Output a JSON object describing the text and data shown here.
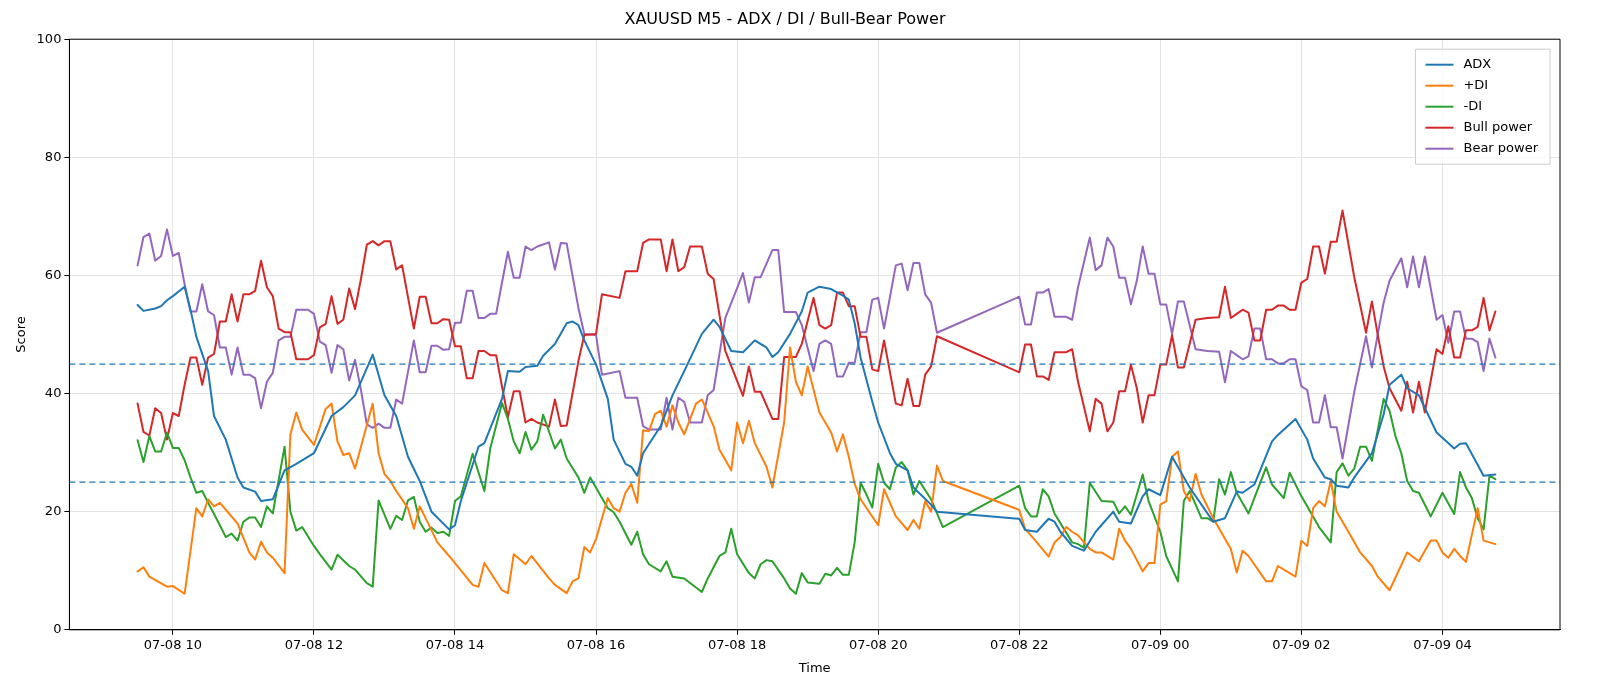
{
  "chart_data": {
    "type": "line",
    "title": "XAUUSD M5 - ADX / DI / Bull-Bear Power",
    "xlabel": "Time",
    "ylabel": "Score",
    "xlim": [
      "--07-08T08:32",
      "--07-09T05:40"
    ],
    "xticks": [
      {
        "value": "--07-08T10:00",
        "label": "07-08 10"
      },
      {
        "value": "--07-08T12:00",
        "label": "07-08 12"
      },
      {
        "value": "--07-08T14:00",
        "label": "07-08 14"
      },
      {
        "value": "--07-08T16:00",
        "label": "07-08 16"
      },
      {
        "value": "--07-08T18:00",
        "label": "07-08 18"
      },
      {
        "value": "--07-08T20:00",
        "label": "07-08 20"
      },
      {
        "value": "--07-08T22:00",
        "label": "07-08 22"
      },
      {
        "value": "--07-09T00:00",
        "label": "07-09 00"
      },
      {
        "value": "--07-09T02:00",
        "label": "07-09 02"
      },
      {
        "value": "--07-09T04:00",
        "label": "07-09 04"
      }
    ],
    "ylim": [
      0,
      100
    ],
    "yticks": [
      0,
      20,
      40,
      60,
      80,
      100
    ],
    "grid": true,
    "legend": "top right",
    "x": [
      "--07-08T09:30",
      "--07-08T09:35",
      "--07-08T09:40",
      "--07-08T09:45",
      "--07-08T09:50",
      "--07-08T09:55",
      "--07-08T10:00",
      "--07-08T10:05",
      "--07-08T10:10",
      "--07-08T10:15",
      "--07-08T10:20",
      "--07-08T10:25",
      "--07-08T10:30",
      "--07-08T10:35",
      "--07-08T10:40",
      "--07-08T10:45",
      "--07-08T10:50",
      "--07-08T10:55",
      "--07-08T11:00",
      "--07-08T11:05",
      "--07-08T11:10",
      "--07-08T11:15",
      "--07-08T11:20",
      "--07-08T11:25",
      "--07-08T11:30",
      "--07-08T11:35",
      "--07-08T11:40",
      "--07-08T11:45",
      "--07-08T11:55",
      "--07-08T12:00",
      "--07-08T12:05",
      "--07-08T12:10",
      "--07-08T12:15",
      "--07-08T12:20",
      "--07-08T12:25",
      "--07-08T12:30",
      "--07-08T12:35",
      "--07-08T12:40",
      "--07-08T12:45",
      "--07-08T12:50",
      "--07-08T12:55",
      "--07-08T13:00",
      "--07-08T13:05",
      "--07-08T13:10",
      "--07-08T13:15",
      "--07-08T13:25",
      "--07-08T13:30",
      "--07-08T13:35",
      "--07-08T13:40",
      "--07-08T13:45",
      "--07-08T13:50",
      "--07-08T13:55",
      "--07-08T14:00",
      "--07-08T14:05",
      "--07-08T14:10",
      "--07-08T14:15",
      "--07-08T14:20",
      "--07-08T14:25",
      "--07-08T14:30",
      "--07-08T14:35",
      "--07-08T14:40",
      "--07-08T14:45",
      "--07-08T14:50",
      "--07-08T14:55",
      "--07-08T15:00",
      "--07-08T15:05",
      "--07-08T15:10",
      "--07-08T15:20",
      "--07-08T15:25",
      "--07-08T15:30",
      "--07-08T15:35",
      "--07-08T15:45",
      "--07-08T15:50",
      "--07-08T16:00",
      "--07-08T16:05",
      "--07-08T16:20",
      "--07-08T16:25",
      "--07-08T16:35",
      "--07-08T16:40",
      "--07-08T16:45",
      "--07-08T16:55",
      "--07-08T17:00",
      "--07-08T17:05",
      "--07-08T17:10",
      "--07-08T17:15",
      "--07-08T17:20",
      "--07-08T17:30",
      "--07-08T17:35",
      "--07-08T17:40",
      "--07-08T17:50",
      "--07-08T18:05",
      "--07-08T18:10",
      "--07-08T18:15",
      "--07-08T18:20",
      "--07-08T18:30",
      "--07-08T18:35",
      "--07-08T18:40",
      "--07-08T18:50",
      "--07-08T18:55",
      "--07-08T19:05",
      "--07-08T19:10",
      "--07-08T19:15",
      "--07-08T19:20",
      "--07-08T19:25",
      "--07-08T19:30",
      "--07-08T19:35",
      "--07-08T19:40",
      "--07-08T19:45",
      "--07-08T19:50",
      "--07-08T19:55",
      "--07-08T20:00",
      "--07-08T20:05",
      "--07-08T20:15",
      "--07-08T20:20",
      "--07-08T20:25",
      "--07-08T20:30",
      "--07-08T20:35",
      "--07-08T20:40",
      "--07-08T20:45",
      "--07-08T20:50",
      "--07-08T22:00",
      "--07-08T22:05",
      "--07-08T22:10",
      "--07-08T22:15",
      "--07-08T22:20",
      "--07-08T22:25",
      "--07-08T22:30",
      "--07-08T22:40",
      "--07-08T22:45",
      "--07-08T22:50",
      "--07-08T23:00",
      "--07-08T23:05",
      "--07-08T23:10",
      "--07-08T23:15",
      "--07-08T23:20",
      "--07-08T23:25",
      "--07-08T23:30",
      "--07-08T23:35",
      "--07-08T23:40",
      "--07-08T23:45",
      "--07-08T23:50",
      "--07-08T23:55",
      "--07-09T00:00",
      "--07-09T00:05",
      "--07-09T00:10",
      "--07-09T00:15",
      "--07-09T00:20",
      "--07-09T00:30",
      "--07-09T00:40",
      "--07-09T00:50",
      "--07-09T00:55",
      "--07-09T01:00",
      "--07-09T01:05",
      "--07-09T01:10",
      "--07-09T01:15",
      "--07-09T01:20",
      "--07-09T01:25",
      "--07-09T01:30",
      "--07-09T01:35",
      "--07-09T01:40",
      "--07-09T01:45",
      "--07-09T01:50",
      "--07-09T01:55",
      "--07-09T02:00",
      "--07-09T02:05",
      "--07-09T02:10",
      "--07-09T02:15",
      "--07-09T02:20",
      "--07-09T02:25",
      "--07-09T02:30",
      "--07-09T02:35",
      "--07-09T02:45",
      "--07-09T02:55",
      "--07-09T03:00",
      "--07-09T03:05",
      "--07-09T03:10",
      "--07-09T03:15",
      "--07-09T03:25",
      "--07-09T03:30",
      "--07-09T03:35",
      "--07-09T03:40",
      "--07-09T03:45",
      "--07-09T03:55",
      "--07-09T04:00",
      "--07-09T04:05",
      "--07-09T04:10",
      "--07-09T04:15",
      "--07-09T04:20",
      "--07-09T04:25",
      "--07-09T04:30",
      "--07-09T04:35",
      "--07-09T04:40",
      "--07-09T04:45"
    ],
    "series": [
      {
        "name": "ADX",
        "color": "#1f77b4",
        "x": [
          "--07-08T09:30",
          "--07-08T09:35",
          "--07-08T09:45",
          "--07-08T09:50",
          "--07-08T09:55",
          "--07-08T10:00",
          "--07-08T10:10",
          "--07-08T10:15",
          "--07-08T10:20",
          "--07-08T10:30",
          "--07-08T10:35",
          "--07-08T10:45",
          "--07-08T10:55",
          "--07-08T11:00",
          "--07-08T11:10",
          "--07-08T11:15",
          "--07-08T11:25",
          "--07-08T11:35",
          "--07-08T11:45",
          "--07-08T12:00",
          "--07-08T12:15",
          "--07-08T12:25",
          "--07-08T12:35",
          "--07-08T12:50",
          "--07-08T13:00",
          "--07-08T13:10",
          "--07-08T13:20",
          "--07-08T13:30",
          "--07-08T13:40",
          "--07-08T13:55",
          "--07-08T14:00",
          "--07-08T14:05",
          "--07-08T14:20",
          "--07-08T14:25",
          "--07-08T14:40",
          "--07-08T14:45",
          "--07-08T14:55",
          "--07-08T15:00",
          "--07-08T15:10",
          "--07-08T15:15",
          "--07-08T15:25",
          "--07-08T15:35",
          "--07-08T15:40",
          "--07-08T15:45",
          "--07-08T15:50",
          "--07-08T16:00",
          "--07-08T16:10",
          "--07-08T16:15",
          "--07-08T16:25",
          "--07-08T16:30",
          "--07-08T16:35",
          "--07-08T16:40",
          "--07-08T16:55",
          "--07-08T17:05",
          "--07-08T17:15",
          "--07-08T17:30",
          "--07-08T17:40",
          "--07-08T17:45",
          "--07-08T17:55",
          "--07-08T18:05",
          "--07-08T18:15",
          "--07-08T18:25",
          "--07-08T18:30",
          "--07-08T18:35",
          "--07-08T18:45",
          "--07-08T18:55",
          "--07-08T19:00",
          "--07-08T19:10",
          "--07-08T19:20",
          "--07-08T19:30",
          "--07-08T19:35",
          "--07-08T19:40",
          "--07-08T19:45",
          "--07-08T19:55",
          "--07-08T20:00",
          "--07-08T20:10",
          "--07-08T20:15",
          "--07-08T20:25",
          "--07-08T20:30",
          "--07-08T20:45",
          "--07-08T20:50",
          "--07-08T22:00",
          "--07-08T22:05",
          "--07-08T22:15",
          "--07-08T22:25",
          "--07-08T22:30",
          "--07-08T22:35",
          "--07-08T22:45",
          "--07-08T22:55",
          "--07-08T23:05",
          "--07-08T23:20",
          "--07-08T23:25",
          "--07-08T23:35",
          "--07-08T23:45",
          "--07-08T23:50",
          "--07-09T00:00",
          "--07-09T00:10",
          "--07-09T00:25",
          "--07-09T00:35",
          "--07-09T00:45",
          "--07-09T00:55",
          "--07-09T01:05",
          "--07-09T01:10",
          "--07-09T01:20",
          "--07-09T01:35",
          "--07-09T01:40",
          "--07-09T01:55",
          "--07-09T02:05",
          "--07-09T02:10",
          "--07-09T02:20",
          "--07-09T02:25",
          "--07-09T02:30",
          "--07-09T02:40",
          "--07-09T02:45",
          "--07-09T03:00",
          "--07-09T03:10",
          "--07-09T03:15",
          "--07-09T03:25",
          "--07-09T03:30",
          "--07-09T03:40",
          "--07-09T03:55",
          "--07-09T04:00",
          "--07-09T04:10",
          "--07-09T04:15",
          "--07-09T04:20",
          "--07-09T04:35",
          "--07-09T04:45"
        ],
        "values": [
          55,
          54,
          54.4,
          54.8,
          55.8,
          56.5,
          58.1,
          54.2,
          49.6,
          43.8,
          36.2,
          32.2,
          25.8,
          24.1,
          23.4,
          21.8,
          22.1,
          27.0,
          28.1,
          29.9,
          36.2,
          37.7,
          39.7,
          46.6,
          39.7,
          36.2,
          29.3,
          25.2,
          20.0,
          17.0,
          17.7,
          21.8,
          31.0,
          31.6,
          39.1,
          43.8,
          43.7,
          44.5,
          44.7,
          46.4,
          48.4,
          51.9,
          52.2,
          51.6,
          49.0,
          44.9,
          39.1,
          32.2,
          28.1,
          27.6,
          26.1,
          29.9,
          34.5,
          39.7,
          43.8,
          50.1,
          52.5,
          51.3,
          47.2,
          47.0,
          49.0,
          47.8,
          46.2,
          47.0,
          50.1,
          53.9,
          57.1,
          58.1,
          57.7,
          56.6,
          55.9,
          51.9,
          46.1,
          38.6,
          35.1,
          29.9,
          28.1,
          27.0,
          24.1,
          21.2,
          20.0,
          18.8,
          16.9,
          16.6,
          18.8,
          18.3,
          16.6,
          14.2,
          13.4,
          16.6,
          20.0,
          18.3,
          18.0,
          22.6,
          23.8,
          22.8,
          29.3,
          24.1,
          21.2,
          18.3,
          18.9,
          23.4,
          23.2,
          24.6,
          31.9,
          33.0,
          35.7,
          32.2,
          29.0,
          25.8,
          25.5,
          24.4,
          24.1,
          25.8,
          29.9,
          36.5,
          41.5,
          43.2,
          40.9,
          39.7,
          33.4,
          32.5,
          30.7,
          31.5,
          31.6,
          26.1,
          26.3
        ]
      },
      {
        "name": "+DI",
        "color": "#ff7f0e",
        "x": [
          "--07-08T09:30",
          "--07-08T09:35",
          "--07-08T09:40",
          "--07-08T09:55",
          "--07-08T10:00",
          "--07-08T10:10",
          "--07-08T10:20",
          "--07-08T10:25",
          "--07-08T10:30",
          "--07-08T10:35",
          "--07-08T10:40",
          "--07-08T10:55",
          "--07-08T11:05",
          "--07-08T11:10",
          "--07-08T11:15",
          "--07-08T11:20",
          "--07-08T11:25",
          "--07-08T11:35",
          "--07-08T11:40",
          "--07-08T11:45",
          "--07-08T11:50",
          "--07-08T12:00",
          "--07-08T12:10",
          "--07-08T12:15",
          "--07-08T12:20",
          "--07-08T12:25",
          "--07-08T12:30",
          "--07-08T12:35",
          "--07-08T12:50",
          "--07-08T12:55",
          "--07-08T13:00",
          "--07-08T13:05",
          "--07-08T13:10",
          "--07-08T13:20",
          "--07-08T13:25",
          "--07-08T13:30",
          "--07-08T13:35",
          "--07-08T13:45",
          "--07-08T13:55",
          "--07-08T14:15",
          "--07-08T14:20",
          "--07-08T14:25",
          "--07-08T14:40",
          "--07-08T14:45",
          "--07-08T14:50",
          "--07-08T15:00",
          "--07-08T15:05",
          "--07-08T15:20",
          "--07-08T15:25",
          "--07-08T15:35",
          "--07-08T15:40",
          "--07-08T15:45",
          "--07-08T15:50",
          "--07-08T15:55",
          "--07-08T16:00",
          "--07-08T16:10",
          "--07-08T16:15",
          "--07-08T16:20",
          "--07-08T16:25",
          "--07-08T16:30",
          "--07-08T16:35",
          "--07-08T16:40",
          "--07-08T16:45",
          "--07-08T16:50",
          "--07-08T16:55",
          "--07-08T17:00",
          "--07-08T17:05",
          "--07-08T17:10",
          "--07-08T17:15",
          "--07-08T17:25",
          "--07-08T17:30",
          "--07-08T17:40",
          "--07-08T17:45",
          "--07-08T17:55",
          "--07-08T18:00",
          "--07-08T18:05",
          "--07-08T18:10",
          "--07-08T18:15",
          "--07-08T18:25",
          "--07-08T18:30",
          "--07-08T18:40",
          "--07-08T18:45",
          "--07-08T18:50",
          "--07-08T18:55",
          "--07-08T19:00",
          "--07-08T19:10",
          "--07-08T19:20",
          "--07-08T19:25",
          "--07-08T19:30",
          "--07-08T19:35",
          "--07-08T19:40",
          "--07-08T19:45",
          "--07-08T20:00",
          "--07-08T20:05",
          "--07-08T20:15",
          "--07-08T20:25",
          "--07-08T20:30",
          "--07-08T20:35",
          "--07-08T20:40",
          "--07-08T20:45",
          "--07-08T20:50",
          "--07-08T20:55",
          "--07-08T22:00",
          "--07-08T22:05",
          "--07-08T22:15",
          "--07-08T22:25",
          "--07-08T22:30",
          "--07-08T22:35",
          "--07-08T22:40",
          "--07-08T22:45",
          "--07-08T22:50",
          "--07-08T23:00",
          "--07-08T23:05",
          "--07-08T23:10",
          "--07-08T23:20",
          "--07-08T23:25",
          "--07-08T23:30",
          "--07-08T23:35",
          "--07-08T23:45",
          "--07-08T23:50",
          "--07-08T23:55",
          "--07-09T00:00",
          "--07-09T00:05",
          "--07-09T00:10",
          "--07-09T00:15",
          "--07-09T00:20",
          "--07-09T00:25",
          "--07-09T00:30",
          "--07-09T00:35",
          "--07-09T00:45",
          "--07-09T00:55",
          "--07-09T01:00",
          "--07-09T01:05",
          "--07-09T01:10",
          "--07-09T01:15",
          "--07-09T01:30",
          "--07-09T01:35",
          "--07-09T01:40",
          "--07-09T01:55",
          "--07-09T02:00",
          "--07-09T02:05",
          "--07-09T02:10",
          "--07-09T02:15",
          "--07-09T02:20",
          "--07-09T02:25",
          "--07-09T02:30",
          "--07-09T02:40",
          "--07-09T02:50",
          "--07-09T03:00",
          "--07-09T03:05",
          "--07-09T03:15",
          "--07-09T03:30",
          "--07-09T03:40",
          "--07-09T03:50",
          "--07-09T03:55",
          "--07-09T04:00",
          "--07-09T04:05",
          "--07-09T04:10",
          "--07-09T04:15",
          "--07-09T04:20",
          "--07-09T04:30",
          "--07-09T04:35",
          "--07-09T04:45"
        ],
        "values": [
          9.9,
          10.6,
          9.0,
          7.3,
          7.4,
          6.1,
          20.6,
          19.2,
          22.1,
          20.9,
          21.5,
          18.0,
          13.1,
          11.9,
          14.9,
          13.1,
          12.2,
          9.6,
          33.1,
          36.8,
          33.9,
          31.3,
          37.4,
          38.3,
          31.9,
          29.6,
          29.9,
          27.3,
          38.3,
          29.9,
          26.4,
          25.2,
          23.5,
          20.6,
          17.1,
          20.9,
          18.9,
          14.8,
          12.5,
          7.6,
          7.3,
          11.3,
          6.7,
          6.2,
          12.8,
          11.1,
          12.5,
          8.7,
          7.6,
          6.2,
          8.2,
          8.7,
          14.0,
          13.1,
          15.4,
          22.3,
          20.6,
          20.0,
          23.2,
          24.7,
          21.5,
          33.8,
          33.6,
          36.5,
          37.1,
          34.4,
          38.0,
          35.1,
          33.1,
          38.3,
          39.0,
          34.5,
          30.5,
          27.0,
          35.1,
          31.6,
          35.4,
          31.6,
          27.6,
          24.1,
          35.1,
          47.8,
          42.0,
          39.7,
          44.6,
          36.8,
          33.4,
          30.2,
          33.1,
          29.3,
          24.7,
          22.1,
          17.7,
          23.8,
          19.2,
          16.9,
          18.6,
          17.1,
          21.8,
          20.0,
          27.8,
          25.2,
          20.3,
          17.1,
          14.8,
          12.4,
          14.8,
          15.7,
          17.4,
          16.6,
          16.0,
          13.7,
          13.1,
          13.1,
          11.9,
          17.1,
          15.1,
          13.7,
          9.9,
          11.3,
          11.3,
          21.2,
          21.8,
          29.3,
          30.2,
          23.5,
          21.8,
          26.4,
          22.9,
          18.9,
          15.4,
          13.7,
          9.7,
          13.4,
          12.5,
          8.2,
          8.2,
          10.8,
          9.0,
          15.1,
          14.2,
          20.6,
          21.8,
          20.9,
          25.2,
          20.0,
          16.6,
          13.1,
          10.8,
          9.0,
          6.7,
          13.1,
          11.6,
          15.1,
          15.1,
          13.1,
          12.2,
          13.7,
          12.5,
          11.5,
          20.6,
          15.1,
          14.5
        ]
      },
      {
        "name": "-DI",
        "color": "#2ca02c",
        "x": [
          "--07-08T09:30",
          "--07-08T09:35",
          "--07-08T09:40",
          "--07-08T09:45",
          "--07-08T09:50",
          "--07-08T09:55",
          "--07-08T10:00",
          "--07-08T10:05",
          "--07-08T10:10",
          "--07-08T10:15",
          "--07-08T10:20",
          "--07-08T10:25",
          "--07-08T10:30",
          "--07-08T10:40",
          "--07-08T10:45",
          "--07-08T10:50",
          "--07-08T10:55",
          "--07-08T11:00",
          "--07-08T11:05",
          "--07-08T11:10",
          "--07-08T11:15",
          "--07-08T11:20",
          "--07-08T11:25",
          "--07-08T11:35",
          "--07-08T11:40",
          "--07-08T11:45",
          "--07-08T11:50",
          "--07-08T12:00",
          "--07-08T12:05",
          "--07-08T12:15",
          "--07-08T12:20",
          "--07-08T12:30",
          "--07-08T12:35",
          "--07-08T12:45",
          "--07-08T12:50",
          "--07-08T12:55",
          "--07-08T13:05",
          "--07-08T13:10",
          "--07-08T13:15",
          "--07-08T13:20",
          "--07-08T13:25",
          "--07-08T13:30",
          "--07-08T13:35",
          "--07-08T13:40",
          "--07-08T13:45",
          "--07-08T13:50",
          "--07-08T13:55",
          "--07-08T14:00",
          "--07-08T14:05",
          "--07-08T14:15",
          "--07-08T14:25",
          "--07-08T14:30",
          "--07-08T14:40",
          "--07-08T14:45",
          "--07-08T14:50",
          "--07-08T14:55",
          "--07-08T15:00",
          "--07-08T15:05",
          "--07-08T15:10",
          "--07-08T15:15",
          "--07-08T15:25",
          "--07-08T15:30",
          "--07-08T15:35",
          "--07-08T15:45",
          "--07-08T15:50",
          "--07-08T15:55",
          "--07-08T16:10",
          "--07-08T16:15",
          "--07-08T16:20",
          "--07-08T16:30",
          "--07-08T16:35",
          "--07-08T16:40",
          "--07-08T16:45",
          "--07-08T16:55",
          "--07-08T17:00",
          "--07-08T17:05",
          "--07-08T17:15",
          "--07-08T17:30",
          "--07-08T17:35",
          "--07-08T17:45",
          "--07-08T17:50",
          "--07-08T17:55",
          "--07-08T18:00",
          "--07-08T18:10",
          "--07-08T18:15",
          "--07-08T18:20",
          "--07-08T18:25",
          "--07-08T18:30",
          "--07-08T18:40",
          "--07-08T18:45",
          "--07-08T18:50",
          "--07-08T18:55",
          "--07-08T19:00",
          "--07-08T19:10",
          "--07-08T19:15",
          "--07-08T19:20",
          "--07-08T19:25",
          "--07-08T19:30",
          "--07-08T19:35",
          "--07-08T19:40",
          "--07-08T19:45",
          "--07-08T19:50",
          "--07-08T19:55",
          "--07-08T20:00",
          "--07-08T20:05",
          "--07-08T20:10",
          "--07-08T20:15",
          "--07-08T20:20",
          "--07-08T20:25",
          "--07-08T20:30",
          "--07-08T20:35",
          "--07-08T20:45",
          "--07-08T20:55",
          "--07-08T22:00",
          "--07-08T22:05",
          "--07-08T22:10",
          "--07-08T22:15",
          "--07-08T22:20",
          "--07-08T22:25",
          "--07-08T22:30",
          "--07-08T22:45",
          "--07-08T22:50",
          "--07-08T22:55",
          "--07-08T23:00",
          "--07-08T23:10",
          "--07-08T23:20",
          "--07-08T23:25",
          "--07-08T23:30",
          "--07-08T23:35",
          "--07-08T23:45",
          "--07-08T23:50",
          "--07-09T00:00",
          "--07-09T00:05",
          "--07-09T00:15",
          "--07-09T00:20",
          "--07-09T00:25",
          "--07-09T00:35",
          "--07-09T00:40",
          "--07-09T00:45",
          "--07-09T00:50",
          "--07-09T00:55",
          "--07-09T01:00",
          "--07-09T01:05",
          "--07-09T01:15",
          "--07-09T01:30",
          "--07-09T01:35",
          "--07-09T01:45",
          "--07-09T01:50",
          "--07-09T02:00",
          "--07-09T02:05",
          "--07-09T02:15",
          "--07-09T02:25",
          "--07-09T02:30",
          "--07-09T02:35",
          "--07-09T02:40",
          "--07-09T02:45",
          "--07-09T02:50",
          "--07-09T02:55",
          "--07-09T03:00",
          "--07-09T03:10",
          "--07-09T03:15",
          "--07-09T03:20",
          "--07-09T03:25",
          "--07-09T03:30",
          "--07-09T03:35",
          "--07-09T03:40",
          "--07-09T03:50",
          "--07-09T04:00",
          "--07-09T04:10",
          "--07-09T04:15",
          "--07-09T04:20",
          "--07-09T04:25",
          "--07-09T04:30",
          "--07-09T04:35",
          "--07-09T04:40",
          "--07-09T04:45"
        ],
        "values": [
          32.1,
          28.4,
          32.8,
          30.2,
          30.2,
          33.4,
          30.8,
          30.8,
          28.7,
          25.8,
          23.2,
          23.5,
          21.5,
          17.7,
          15.7,
          16.3,
          15.1,
          18.3,
          19.0,
          19.0,
          17.4,
          20.9,
          19.7,
          31.0,
          20.0,
          16.8,
          17.4,
          14.2,
          12.8,
          10.2,
          12.7,
          10.8,
          10.2,
          7.9,
          7.3,
          21.9,
          17.1,
          19.3,
          18.6,
          21.9,
          22.5,
          18.3,
          16.6,
          17.3,
          16.4,
          16.6,
          15.9,
          21.8,
          22.6,
          29.8,
          23.5,
          30.7,
          38.4,
          35.7,
          31.9,
          29.9,
          33.5,
          30.5,
          31.9,
          36.4,
          30.7,
          32.2,
          29.0,
          25.8,
          23.2,
          25.8,
          20.6,
          19.9,
          18.3,
          14.4,
          16.6,
          12.8,
          11.1,
          9.9,
          11.6,
          9.0,
          8.7,
          6.4,
          8.7,
          12.5,
          13.1,
          17.1,
          12.8,
          9.6,
          8.7,
          11.1,
          11.8,
          11.6,
          8.7,
          7.0,
          6.1,
          9.6,
          8.0,
          7.8,
          9.5,
          9.2,
          10.5,
          9.3,
          9.3,
          14.8,
          24.9,
          22.9,
          20.7,
          28.1,
          24.9,
          23.8,
          27.5,
          28.4,
          27.0,
          22.9,
          25.2,
          22.1,
          17.4,
          24.4,
          20.6,
          19.2,
          19.2,
          23.8,
          22.6,
          19.7,
          14.8,
          14.5,
          13.9,
          24.9,
          21.8,
          21.7,
          19.7,
          20.9,
          19.5,
          26.3,
          21.8,
          16.6,
          12.5,
          8.2,
          21.8,
          23.5,
          18.9,
          18.9,
          18.3,
          25.5,
          22.9,
          26.7,
          23.2,
          19.7,
          27.5,
          24.6,
          22.3,
          26.6,
          22.6,
          20.9,
          17.4,
          14.8,
          26.7,
          28.2,
          26.1,
          27.3,
          31.0,
          31.0,
          28.6,
          39.1,
          37.1,
          32.8,
          29.9,
          25.2,
          23.5,
          23.2,
          19.2,
          23.2,
          19.6,
          26.7,
          24.1,
          22.3,
          18.9,
          17.0,
          26.1,
          25.5
        ]
      },
      {
        "name": "Bull power",
        "color": "#d62728",
        "values": [
          38.3,
          33.5,
          32.9,
          37.5,
          36.7,
          32.2,
          36.7,
          36.2,
          41.5,
          46.1,
          46.1,
          41.5,
          46.1,
          46.7,
          52.2,
          52.2,
          56.8,
          52.2,
          56.8,
          56.8,
          57.4,
          62.5,
          58.0,
          56.5,
          51.0,
          50.4,
          50.4,
          45.8,
          45.8,
          46.5,
          51.2,
          51.8,
          56.5,
          51.8,
          52.5,
          57.8,
          54.3,
          59.4,
          65.2,
          65.8,
          65.1,
          65.8,
          65.8,
          61.0,
          61.7,
          51.0,
          56.4,
          56.4,
          51.9,
          51.9,
          52.6,
          52.5,
          48.0,
          48.0,
          42.6,
          42.6,
          47.2,
          47.2,
          46.5,
          46.5,
          41.2,
          36.0,
          40.4,
          40.4,
          35.1,
          35.7,
          35.1,
          34.4,
          39.0,
          34.5,
          34.6,
          45.5,
          49.9,
          50.1,
          56.8,
          56.2,
          60.7,
          60.7,
          65.5,
          66.1,
          66.1,
          60.7,
          66.1,
          60.7,
          61.4,
          64.9,
          64.9,
          60.3,
          59.4,
          47.2,
          39.6,
          44.6,
          40.3,
          40.3,
          35.7,
          35.7,
          46.2,
          46.2,
          48.4,
          56.2,
          51.6,
          51.0,
          51.6,
          57.1,
          57.1,
          54.8,
          54.8,
          49.6,
          49.6,
          44.1,
          43.8,
          49.0,
          38.3,
          38.0,
          42.5,
          37.9,
          37.9,
          43.2,
          44.6,
          49.7,
          43.6,
          48.3,
          48.3,
          42.9,
          42.9,
          42.3,
          47.0,
          47.0,
          47.5,
          42.0,
          33.6,
          39.1,
          38.3,
          33.6,
          35.1,
          40.4,
          40.4,
          44.9,
          40.9,
          35.1,
          39.7,
          39.7,
          44.9,
          44.9,
          49.9,
          44.4,
          44.4,
          52.5,
          52.8,
          52.9,
          58.1,
          52.8,
          53.5,
          54.2,
          53.7,
          49.0,
          49.0,
          54.2,
          54.2,
          54.9,
          54.9,
          54.2,
          54.2,
          58.8,
          59.4,
          64.9,
          64.9,
          60.3,
          65.7,
          65.7,
          71.0,
          59.7,
          50.3,
          55.6,
          49.9,
          44.6,
          40.9,
          37.1,
          42.0,
          36.8,
          42.0,
          36.8,
          47.5,
          46.7,
          51.4,
          46.1,
          46.1,
          50.7,
          50.7,
          51.3,
          56.2,
          50.7,
          53.9
        ]
      },
      {
        "name": "Bear power",
        "color": "#9467bd",
        "values": [
          61.7,
          66.5,
          67.1,
          62.5,
          63.3,
          67.8,
          63.3,
          63.8,
          58.5,
          53.9,
          53.9,
          58.5,
          53.9,
          53.3,
          47.8,
          47.8,
          43.2,
          47.8,
          43.2,
          43.2,
          42.6,
          37.5,
          42.0,
          43.5,
          49.0,
          49.6,
          49.6,
          54.2,
          54.2,
          53.5,
          48.8,
          48.2,
          43.5,
          48.2,
          47.5,
          42.2,
          45.7,
          40.6,
          34.8,
          34.2,
          34.9,
          34.2,
          34.2,
          39.0,
          38.3,
          49.0,
          43.6,
          43.6,
          48.1,
          48.1,
          47.4,
          47.5,
          52.0,
          52.0,
          57.4,
          57.4,
          52.8,
          52.8,
          53.5,
          53.5,
          58.8,
          64.0,
          59.6,
          59.6,
          64.9,
          64.3,
          64.9,
          65.6,
          61.0,
          65.5,
          65.4,
          54.5,
          50.1,
          49.9,
          43.2,
          43.8,
          39.3,
          39.3,
          34.5,
          33.9,
          33.9,
          39.3,
          33.9,
          39.3,
          38.6,
          35.1,
          35.1,
          39.7,
          40.6,
          52.8,
          60.4,
          55.4,
          59.7,
          59.7,
          64.3,
          64.3,
          53.8,
          53.8,
          51.6,
          43.8,
          48.4,
          49.0,
          48.4,
          42.9,
          42.9,
          45.2,
          45.2,
          50.4,
          50.4,
          55.9,
          56.2,
          51.0,
          61.7,
          62.0,
          57.5,
          62.1,
          62.1,
          56.8,
          55.4,
          50.3,
          56.4,
          51.7,
          51.7,
          57.1,
          57.1,
          57.7,
          53.0,
          53.0,
          52.5,
          58.0,
          66.4,
          60.9,
          61.7,
          66.4,
          64.9,
          59.6,
          59.6,
          55.1,
          59.1,
          64.9,
          60.3,
          60.3,
          55.1,
          55.1,
          50.1,
          55.6,
          55.6,
          47.5,
          47.2,
          47.1,
          41.9,
          47.2,
          46.5,
          45.8,
          46.3,
          51.0,
          51.0,
          45.8,
          45.8,
          45.1,
          45.1,
          45.8,
          45.8,
          41.2,
          40.6,
          35.1,
          35.1,
          39.7,
          34.3,
          34.3,
          29.0,
          40.3,
          49.7,
          44.4,
          50.1,
          55.4,
          59.1,
          62.9,
          58.0,
          63.2,
          58.0,
          63.2,
          52.5,
          53.3,
          48.6,
          53.9,
          53.9,
          49.3,
          49.3,
          48.7,
          43.8,
          49.3,
          46.1
        ]
      }
    ],
    "ref_lines": [
      {
        "axis": "y",
        "value": 45,
        "color": "#1f77b4",
        "line_style": "dashed"
      },
      {
        "axis": "y",
        "value": 25,
        "color": "#1f77b4",
        "line_style": "dashed"
      }
    ]
  }
}
